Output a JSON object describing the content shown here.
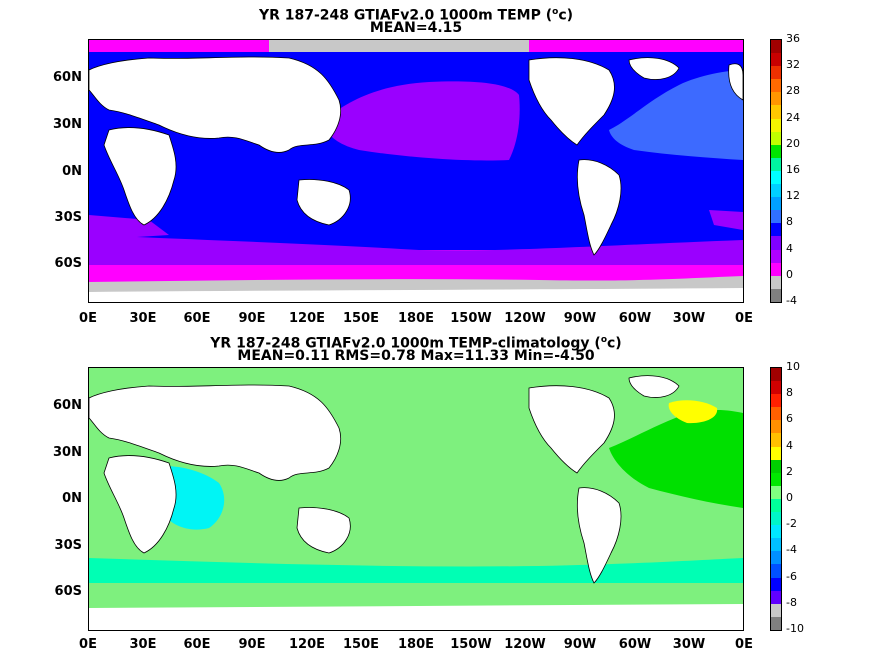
{
  "top_panel": {
    "title": "YR 187-248 GTIAFv2.0 1000m TEMP (",
    "title_unit_sup": "o",
    "title_unit_end": "c)",
    "subtitle": "MEAN=4.15",
    "colorbar_labels": [
      "36",
      "32",
      "28",
      "24",
      "20",
      "16",
      "12",
      "8",
      "4",
      "0",
      "-4"
    ],
    "colorbar_colors": [
      "#a00000",
      "#c80000",
      "#ee3000",
      "#ff6a00",
      "#ff9600",
      "#ffc800",
      "#f5f500",
      "#c0ff00",
      "#00e600",
      "#00f5a0",
      "#00ffff",
      "#00d0ff",
      "#00a0ff",
      "#3070ff",
      "#0000ff",
      "#8000ff",
      "#b000ff",
      "#ff00ff",
      "#c8c8c8",
      "#808080"
    ]
  },
  "bottom_panel": {
    "title": "YR 187-248 GTIAFv2.0 1000m TEMP-climatology (",
    "title_unit_sup": "o",
    "title_unit_end": "c)",
    "subtitle": "MEAN=0.11   RMS=0.78   Max=11.33   Min=-4.50",
    "colorbar_labels": [
      "10",
      "8",
      "6",
      "4",
      "2",
      "0",
      "-2",
      "-4",
      "-6",
      "-8",
      "-10"
    ],
    "colorbar_colors": [
      "#a00000",
      "#d00000",
      "#ff2000",
      "#ff6000",
      "#ff9000",
      "#ffc000",
      "#ffff00",
      "#00d000",
      "#00e800",
      "#80ff80",
      "#00ff9a",
      "#00f5c8",
      "#00e8ff",
      "#00c0ff",
      "#0090ff",
      "#0050ff",
      "#0000ff",
      "#6000ff",
      "#c8c8c8",
      "#808080"
    ]
  },
  "lat_labels": [
    "60N",
    "30N",
    "0N",
    "30S",
    "60S"
  ],
  "lon_labels": [
    "0E",
    "30E",
    "60E",
    "90E",
    "120E",
    "150E",
    "180E",
    "150W",
    "120W",
    "90W",
    "60W",
    "30W",
    "0E"
  ],
  "colors": {
    "top_pacific_atlantic": "#0000ff",
    "top_north_pacific": "#9a00ff",
    "top_north_atlantic": "#3d6aff",
    "top_southern": "#9a00ff",
    "top_polar": "#ff00ff",
    "top_ice": "#c8c8c8",
    "bottom_ocean": "#7ef07e",
    "bottom_atlantic": "#00e000",
    "bottom_indian": "#00f5f5",
    "bottom_anomaly_hot": "#ffff00",
    "bottom_southern": "#00ffb4",
    "land": "#ffffff"
  }
}
